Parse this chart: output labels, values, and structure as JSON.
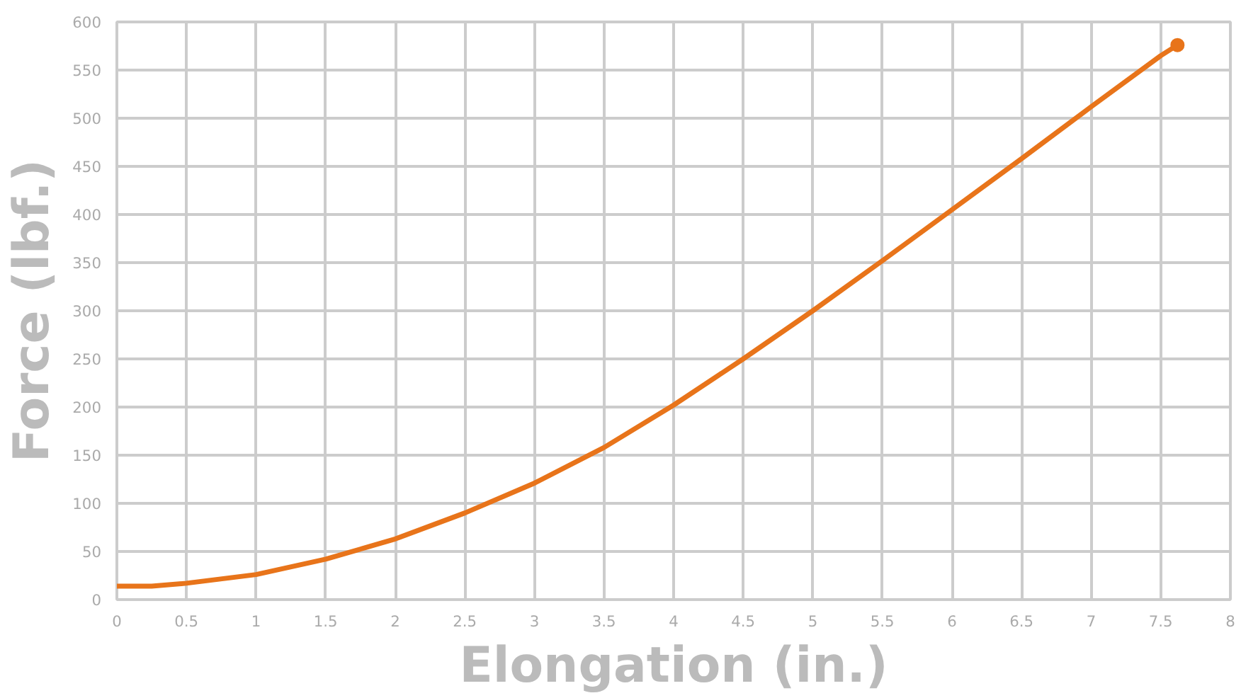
{
  "chart_data": {
    "type": "line",
    "xlabel": "Elongation (in.)",
    "ylabel": "Force (lbf.)",
    "xlim": [
      0,
      8
    ],
    "ylim": [
      0,
      600
    ],
    "xticks": [
      0,
      0.5,
      1,
      1.5,
      2,
      2.5,
      3,
      3.5,
      4,
      4.5,
      5,
      5.5,
      6,
      6.5,
      7,
      7.5,
      8
    ],
    "yticks": [
      0,
      50,
      100,
      150,
      200,
      250,
      300,
      350,
      400,
      450,
      500,
      550,
      600
    ],
    "grid": true,
    "series": [
      {
        "color": "#e8741a",
        "x": [
          0,
          0.25,
          0.5,
          1,
          1.5,
          2,
          2.5,
          3,
          3.5,
          4,
          4.5,
          5,
          5.5,
          6,
          6.5,
          7,
          7.5,
          7.62
        ],
        "values": [
          14,
          14,
          17,
          26,
          42,
          63,
          90,
          121,
          158,
          202,
          250,
          300,
          352,
          405,
          458,
          512,
          565,
          576
        ]
      },
      {
        "type": "scatter",
        "color": "#e8741a",
        "x": [
          7.62
        ],
        "values": [
          576
        ]
      }
    ]
  }
}
